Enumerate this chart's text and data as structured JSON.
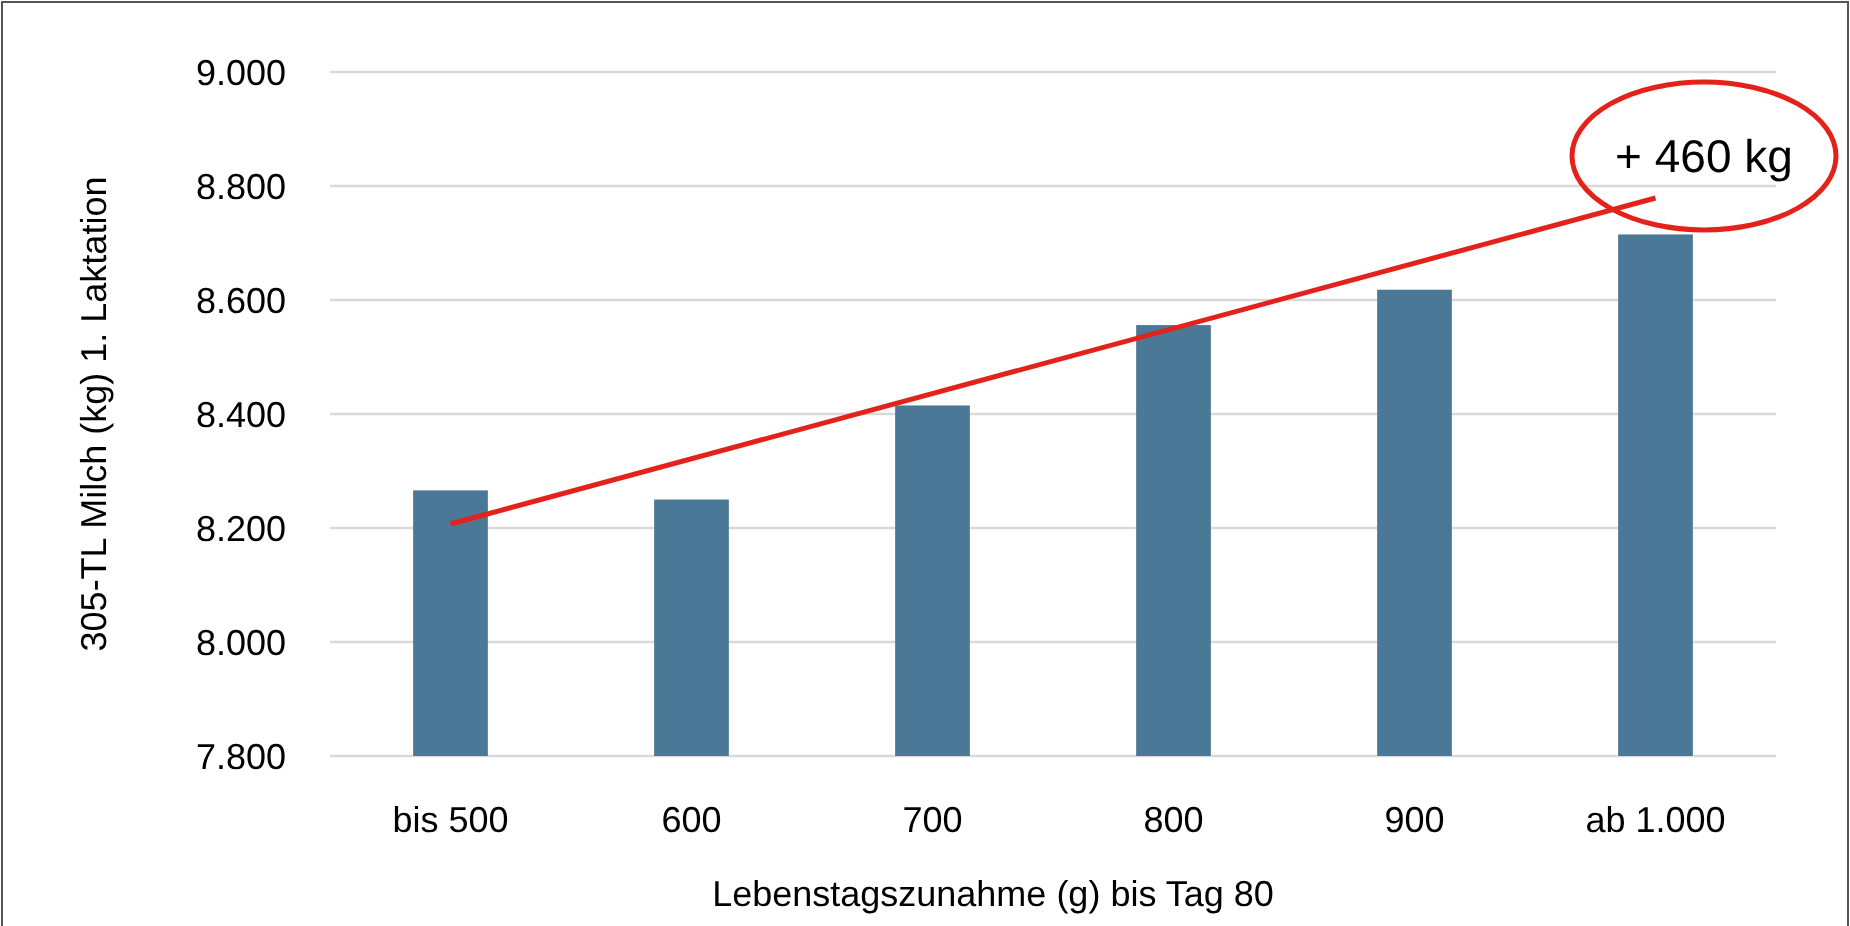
{
  "chart_data": {
    "type": "bar",
    "xlabel": "Lebenstagszunahme (g) bis Tag 80",
    "ylabel": "305-TL Milch (kg) 1. Laktation",
    "categories": [
      "bis 500",
      "600",
      "700",
      "800",
      "900",
      "ab 1.000"
    ],
    "series": [
      {
        "color": "#4a7896",
        "values": [
          8266,
          8250,
          8415,
          8556,
          8618,
          8715
        ]
      },
      {
        "type": "line",
        "color": "#e3231b",
        "x": [
          "bis 500",
          "ab 1.000"
        ],
        "values": [
          8207,
          8779
        ]
      }
    ],
    "ylim": [
      7800,
      9000
    ],
    "yticks": [
      {
        "value": 7800,
        "label": "7.800"
      },
      {
        "value": 8000,
        "label": "8.000"
      },
      {
        "value": 8200,
        "label": "8.200"
      },
      {
        "value": 8400,
        "label": "8.400"
      },
      {
        "value": 8600,
        "label": "8.600"
      },
      {
        "value": 8800,
        "label": "8.800"
      },
      {
        "value": 9000,
        "label": "9.000"
      }
    ],
    "grid": "y",
    "marker": "none",
    "line_style": "solid",
    "annotations": [
      "+ 460 kg"
    ]
  }
}
